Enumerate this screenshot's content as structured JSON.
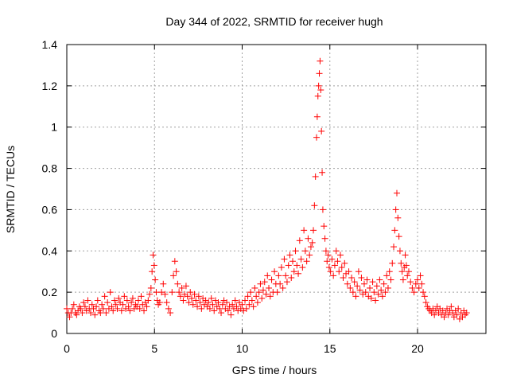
{
  "chart_data": {
    "type": "scatter",
    "title": "Day 344 of 2022, SRMTID for receiver hugh",
    "xlabel": "GPS time / hours",
    "ylabel": "SRMTID / TECUs",
    "xlim": [
      0,
      23.9
    ],
    "ylim": [
      0,
      1.4
    ],
    "xticks": [
      0,
      5,
      10,
      15,
      20
    ],
    "yticks": [
      0,
      0.2,
      0.4,
      0.6,
      0.8,
      1,
      1.2,
      1.4
    ],
    "xtick_labels": [
      "0",
      "5",
      "10",
      "15",
      "20"
    ],
    "ytick_labels": [
      "0",
      "0.2",
      "0.4",
      "0.6",
      "0.8",
      "1",
      "1.2",
      "1.4"
    ],
    "grid": true,
    "marker": "+",
    "series": [
      {
        "name": "SRMTID",
        "color": "#ff0000",
        "x": [
          0.0,
          0.08,
          0.16,
          0.24,
          0.32,
          0.4,
          0.48,
          0.56,
          0.64,
          0.72,
          0.8,
          0.88,
          0.96,
          1.04,
          1.12,
          1.2,
          1.28,
          1.36,
          1.44,
          1.52,
          1.6,
          1.68,
          1.76,
          1.84,
          1.92,
          2.0,
          2.08,
          2.16,
          2.24,
          2.32,
          2.4,
          2.48,
          2.56,
          2.64,
          2.72,
          2.8,
          2.88,
          2.96,
          3.04,
          3.12,
          3.2,
          3.28,
          3.36,
          3.44,
          3.52,
          3.6,
          3.68,
          3.76,
          3.84,
          3.92,
          4.0,
          4.08,
          4.16,
          4.24,
          4.32,
          4.4,
          4.48,
          4.56,
          4.64,
          4.72,
          4.8,
          4.86,
          4.92,
          4.98,
          5.04,
          5.1,
          5.16,
          5.22,
          5.3,
          5.4,
          5.5,
          5.6,
          5.7,
          5.8,
          5.9,
          6.0,
          6.08,
          6.16,
          6.24,
          6.32,
          6.4,
          6.48,
          6.56,
          6.64,
          6.72,
          6.8,
          6.88,
          6.96,
          7.04,
          7.12,
          7.2,
          7.28,
          7.36,
          7.44,
          7.52,
          7.6,
          7.68,
          7.76,
          7.84,
          7.92,
          8.0,
          8.08,
          8.16,
          8.24,
          8.32,
          8.4,
          8.48,
          8.56,
          8.64,
          8.72,
          8.8,
          8.88,
          8.96,
          9.04,
          9.12,
          9.2,
          9.28,
          9.36,
          9.44,
          9.52,
          9.6,
          9.68,
          9.76,
          9.84,
          9.92,
          10.0,
          10.08,
          10.16,
          10.24,
          10.32,
          10.4,
          10.48,
          10.56,
          10.64,
          10.72,
          10.8,
          10.88,
          10.96,
          11.04,
          11.12,
          11.2,
          11.28,
          11.36,
          11.44,
          11.52,
          11.6,
          11.68,
          11.76,
          11.84,
          11.92,
          12.0,
          12.08,
          12.16,
          12.24,
          12.32,
          12.4,
          12.48,
          12.56,
          12.64,
          12.72,
          12.8,
          12.88,
          12.96,
          13.04,
          13.12,
          13.2,
          13.28,
          13.36,
          13.44,
          13.52,
          13.6,
          13.68,
          13.76,
          13.84,
          13.92,
          14.0,
          14.06,
          14.12,
          14.18,
          14.24,
          14.28,
          14.32,
          14.36,
          14.4,
          14.44,
          14.48,
          14.52,
          14.56,
          14.6,
          14.66,
          14.72,
          14.78,
          14.84,
          14.9,
          14.96,
          15.04,
          15.12,
          15.2,
          15.28,
          15.36,
          15.44,
          15.52,
          15.6,
          15.68,
          15.76,
          15.84,
          15.92,
          16.0,
          16.08,
          16.16,
          16.24,
          16.32,
          16.4,
          16.48,
          16.56,
          16.64,
          16.72,
          16.8,
          16.88,
          16.96,
          17.04,
          17.12,
          17.2,
          17.28,
          17.36,
          17.44,
          17.52,
          17.6,
          17.68,
          17.76,
          17.84,
          17.92,
          18.0,
          18.08,
          18.16,
          18.24,
          18.32,
          18.4,
          18.48,
          18.56,
          18.64,
          18.7,
          18.76,
          18.82,
          18.88,
          18.94,
          19.0,
          19.06,
          19.12,
          19.18,
          19.24,
          19.3,
          19.36,
          19.42,
          19.5,
          19.6,
          19.7,
          19.8,
          19.9,
          20.0,
          20.08,
          20.16,
          20.24,
          20.32,
          20.4,
          20.48,
          20.56,
          20.64,
          20.72,
          20.8,
          20.88,
          20.96,
          21.04,
          21.12,
          21.2,
          21.28,
          21.36,
          21.44,
          21.52,
          21.6,
          21.68,
          21.76,
          21.84,
          21.92,
          22.0,
          22.08,
          22.16,
          22.24,
          22.32,
          22.4,
          22.48,
          22.56,
          22.64,
          22.72,
          22.8
        ],
        "y": [
          0.12,
          0.1,
          0.08,
          0.1,
          0.12,
          0.14,
          0.1,
          0.09,
          0.11,
          0.13,
          0.12,
          0.1,
          0.15,
          0.13,
          0.11,
          0.16,
          0.12,
          0.1,
          0.14,
          0.12,
          0.09,
          0.13,
          0.16,
          0.11,
          0.1,
          0.14,
          0.12,
          0.18,
          0.1,
          0.15,
          0.12,
          0.2,
          0.13,
          0.11,
          0.16,
          0.14,
          0.12,
          0.17,
          0.15,
          0.11,
          0.14,
          0.18,
          0.12,
          0.16,
          0.13,
          0.11,
          0.15,
          0.17,
          0.12,
          0.14,
          0.13,
          0.16,
          0.12,
          0.18,
          0.14,
          0.11,
          0.15,
          0.13,
          0.16,
          0.19,
          0.22,
          0.3,
          0.38,
          0.33,
          0.26,
          0.2,
          0.16,
          0.14,
          0.15,
          0.2,
          0.24,
          0.19,
          0.15,
          0.12,
          0.1,
          0.2,
          0.28,
          0.35,
          0.3,
          0.24,
          0.2,
          0.18,
          0.22,
          0.16,
          0.19,
          0.23,
          0.18,
          0.15,
          0.2,
          0.17,
          0.14,
          0.19,
          0.16,
          0.13,
          0.18,
          0.15,
          0.12,
          0.17,
          0.14,
          0.16,
          0.13,
          0.15,
          0.12,
          0.17,
          0.14,
          0.11,
          0.16,
          0.13,
          0.15,
          0.12,
          0.1,
          0.14,
          0.16,
          0.12,
          0.15,
          0.11,
          0.13,
          0.09,
          0.14,
          0.12,
          0.16,
          0.13,
          0.11,
          0.15,
          0.12,
          0.14,
          0.11,
          0.16,
          0.12,
          0.18,
          0.14,
          0.2,
          0.16,
          0.13,
          0.22,
          0.18,
          0.15,
          0.2,
          0.24,
          0.17,
          0.21,
          0.25,
          0.19,
          0.28,
          0.22,
          0.18,
          0.26,
          0.2,
          0.3,
          0.24,
          0.2,
          0.28,
          0.24,
          0.32,
          0.22,
          0.36,
          0.28,
          0.25,
          0.33,
          0.38,
          0.27,
          0.35,
          0.3,
          0.4,
          0.33,
          0.29,
          0.45,
          0.36,
          0.32,
          0.5,
          0.4,
          0.35,
          0.46,
          0.38,
          0.42,
          0.44,
          0.5,
          0.62,
          0.76,
          0.95,
          1.05,
          1.15,
          1.2,
          1.26,
          1.32,
          1.18,
          0.98,
          0.78,
          0.6,
          0.52,
          0.46,
          0.4,
          0.35,
          0.38,
          0.32,
          0.3,
          0.36,
          0.28,
          0.33,
          0.4,
          0.35,
          0.3,
          0.38,
          0.32,
          0.27,
          0.34,
          0.29,
          0.24,
          0.3,
          0.22,
          0.27,
          0.2,
          0.25,
          0.18,
          0.23,
          0.3,
          0.21,
          0.27,
          0.19,
          0.24,
          0.2,
          0.26,
          0.18,
          0.22,
          0.17,
          0.25,
          0.2,
          0.16,
          0.23,
          0.19,
          0.26,
          0.21,
          0.18,
          0.24,
          0.2,
          0.28,
          0.22,
          0.3,
          0.26,
          0.34,
          0.42,
          0.5,
          0.6,
          0.68,
          0.56,
          0.47,
          0.4,
          0.34,
          0.3,
          0.26,
          0.32,
          0.38,
          0.33,
          0.28,
          0.3,
          0.25,
          0.22,
          0.2,
          0.24,
          0.26,
          0.22,
          0.28,
          0.24,
          0.2,
          0.18,
          0.15,
          0.13,
          0.12,
          0.11,
          0.1,
          0.12,
          0.09,
          0.11,
          0.13,
          0.1,
          0.12,
          0.09,
          0.11,
          0.08,
          0.1,
          0.12,
          0.09,
          0.11,
          0.13,
          0.1,
          0.08,
          0.11,
          0.09,
          0.12,
          0.07,
          0.1,
          0.08,
          0.11,
          0.09,
          0.1
        ]
      }
    ]
  }
}
